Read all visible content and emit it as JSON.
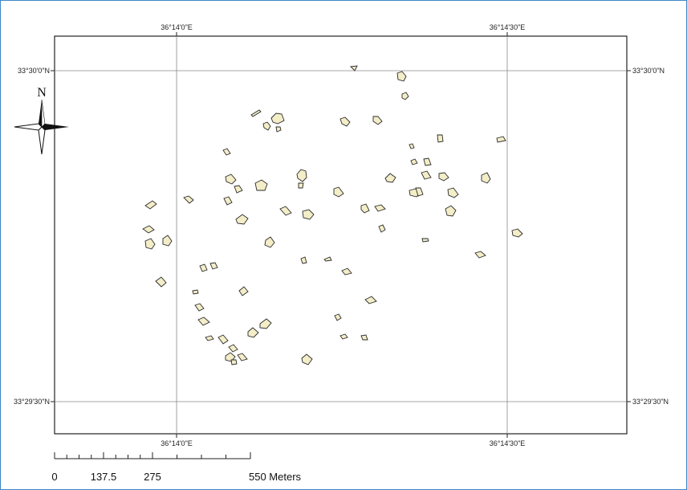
{
  "map": {
    "top_labels": [
      "36°14'0\"E",
      "36°14'30\"E"
    ],
    "bottom_labels": [
      "36°14'0\"E",
      "36°14'30\"E"
    ],
    "left_labels": [
      "33°30'0\"N",
      "33°29'30\"N"
    ],
    "right_labels": [
      "33°30'0\"N",
      "33°29'30\"N"
    ]
  },
  "north_arrow": {
    "label": "N",
    "icon": "north-arrow-icon"
  },
  "scale_bar": {
    "ticks": [
      "0",
      "137.5",
      "275",
      "550 Meters"
    ],
    "tick_values": [
      0,
      137.5,
      275,
      550
    ]
  },
  "colors": {
    "patch_fill": "#f3edc8",
    "patch_stroke": "#2a2a2a",
    "frame": "#3d88c8"
  }
}
